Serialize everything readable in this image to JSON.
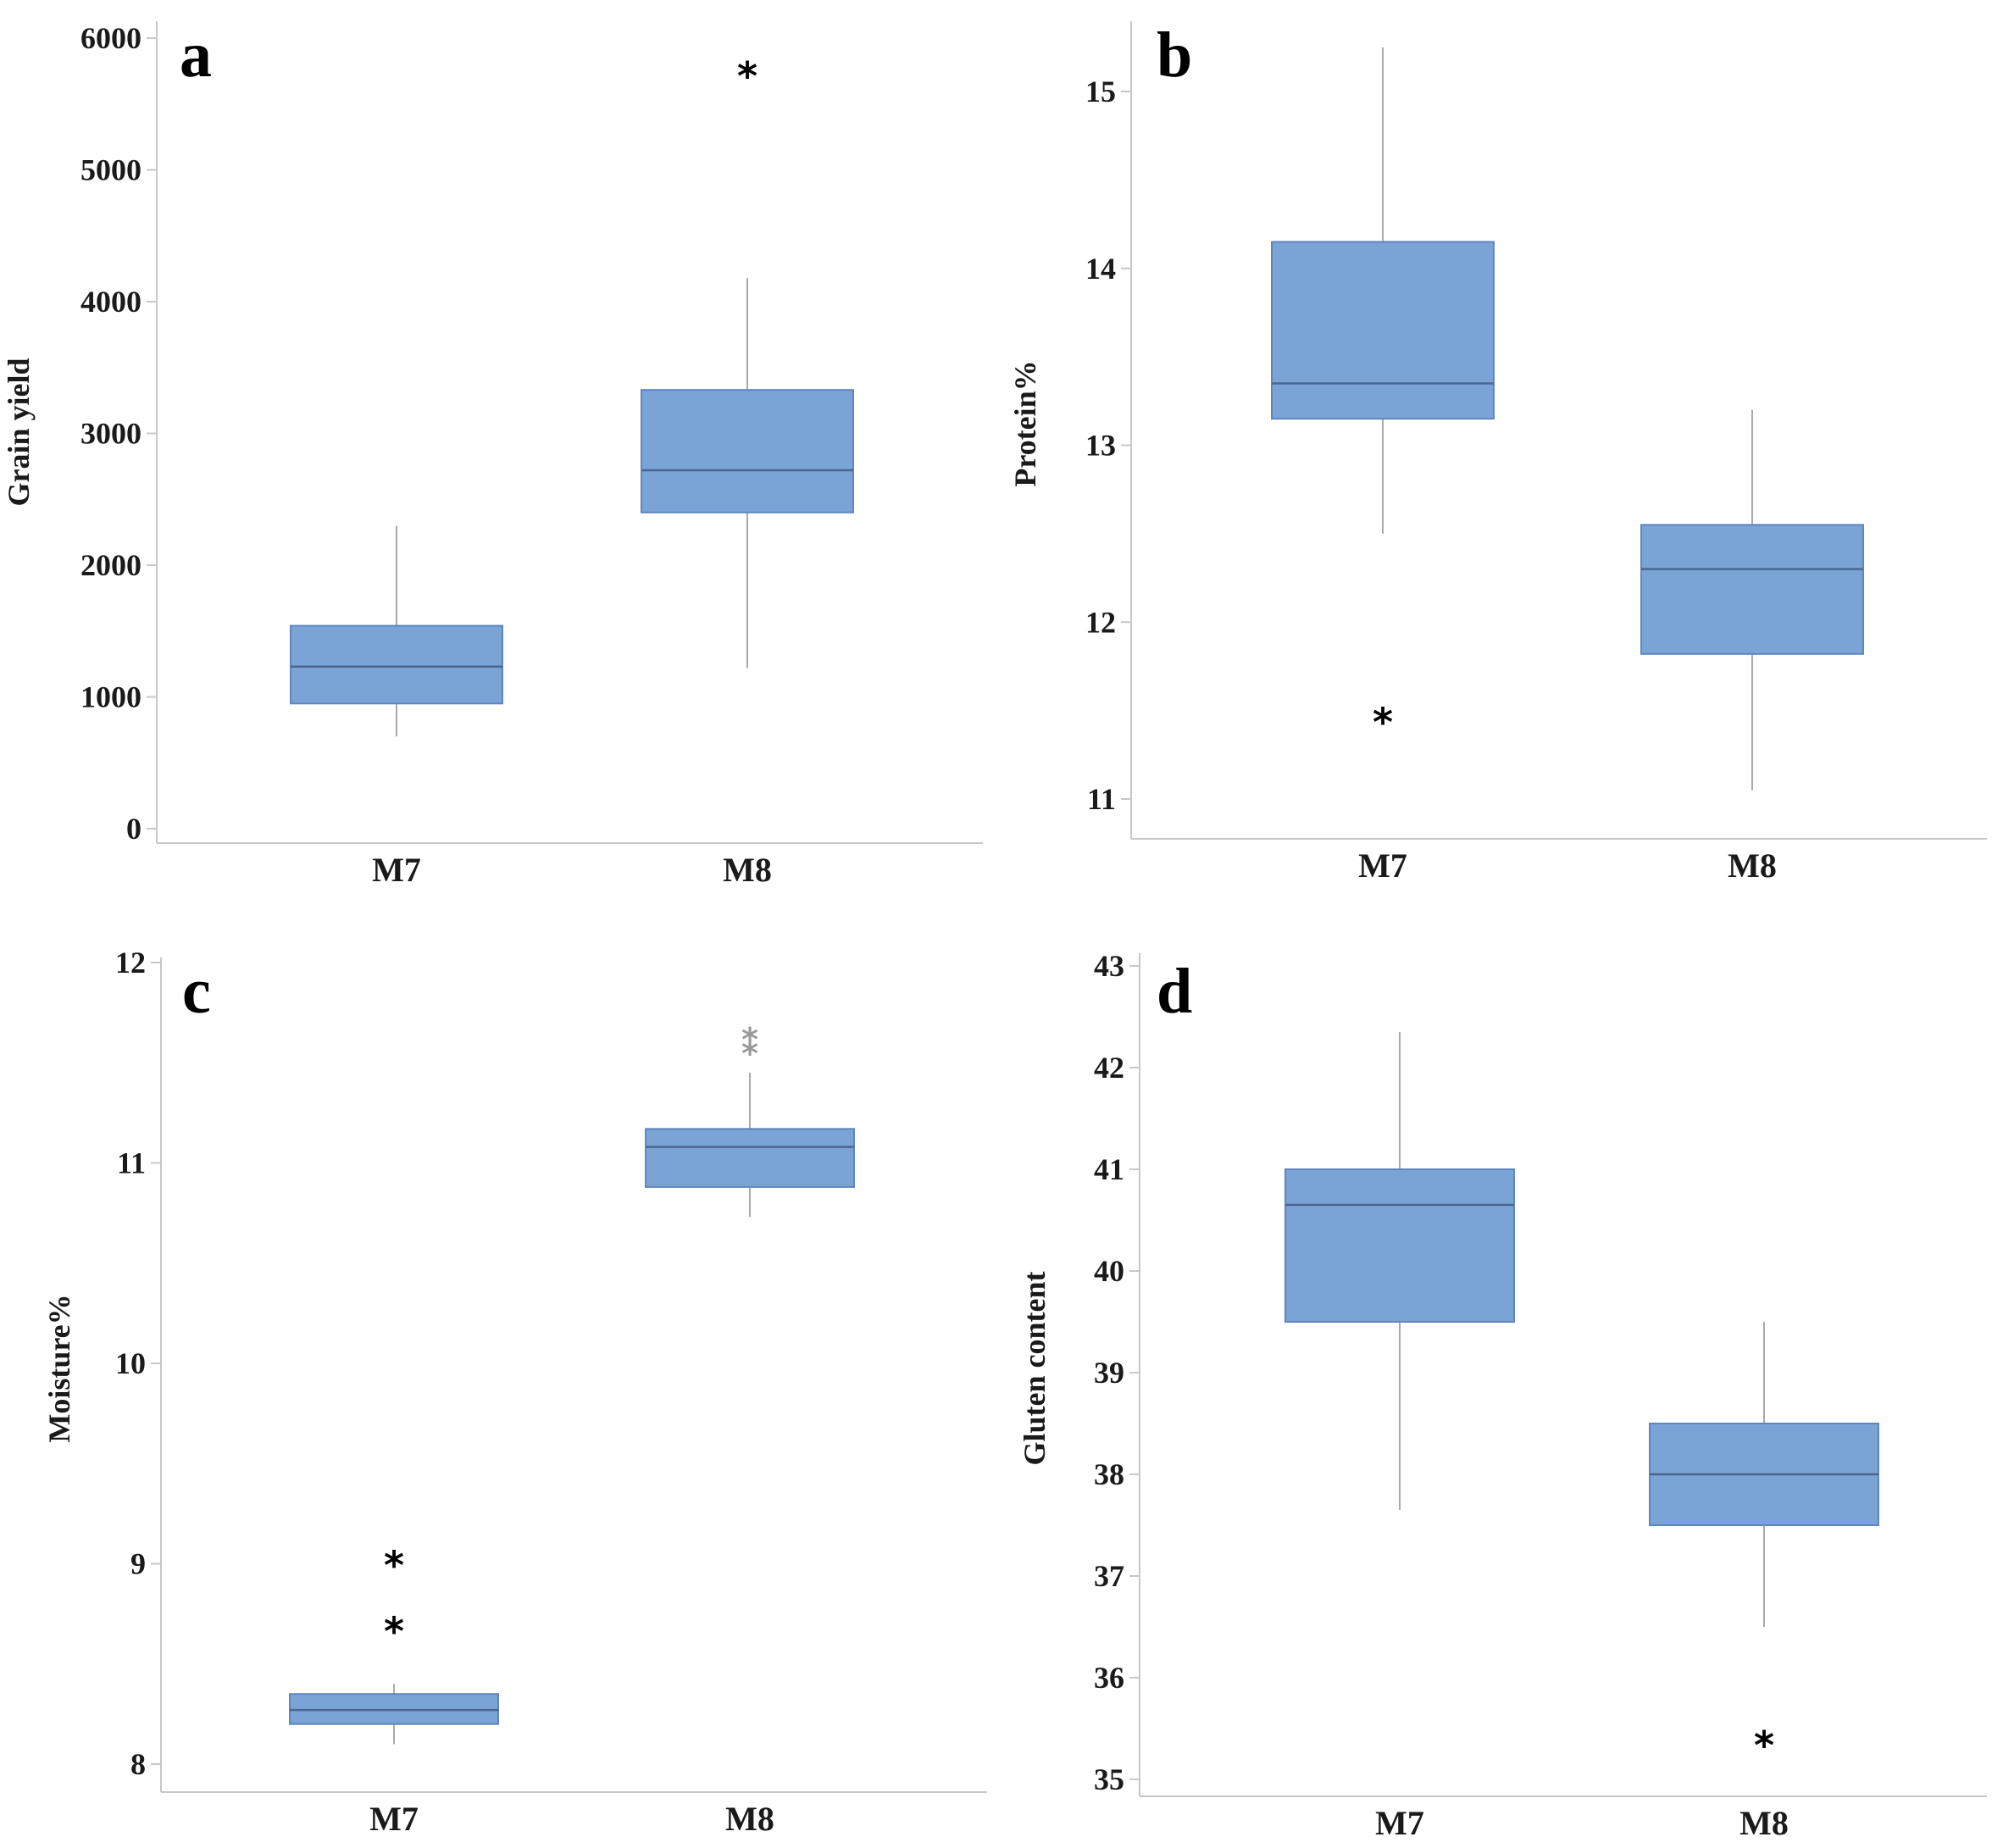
{
  "colors": {
    "box_fill": "#7aa3d6",
    "box_stroke": "#5f87bd",
    "median": "#4a6690",
    "whisker": "#a9a9a9",
    "axis": "#c8c8c8"
  },
  "chart_data": [
    {
      "type": "box",
      "panel": "a",
      "title": "",
      "xlabel": "",
      "ylabel": "Grain yield",
      "ylim": [
        0,
        6000
      ],
      "yticks": [
        0,
        1000,
        2000,
        3000,
        4000,
        5000,
        6000
      ],
      "ytick_labels": [
        "0",
        "1000",
        "2000",
        "3000",
        "4000",
        "5000",
        "6000"
      ],
      "categories": [
        "M7",
        "M8"
      ],
      "boxes": [
        {
          "category": "M7",
          "whisker_low": 700,
          "q1": 950,
          "median": 1230,
          "q3": 1540,
          "whisker_high": 2300,
          "outliers": [],
          "faint_outliers": []
        },
        {
          "category": "M8",
          "whisker_low": 1220,
          "q1": 2400,
          "median": 2720,
          "q3": 3330,
          "whisker_high": 4180,
          "outliers": [
            5800
          ],
          "faint_outliers": []
        }
      ]
    },
    {
      "type": "box",
      "panel": "b",
      "title": "",
      "xlabel": "",
      "ylabel": "Protein%",
      "ylim": [
        10.8,
        15.4
      ],
      "yticks": [
        11,
        12,
        13,
        14,
        15
      ],
      "ytick_labels": [
        "11",
        "12",
        "13",
        "14",
        "15"
      ],
      "categories": [
        "M7",
        "M8"
      ],
      "boxes": [
        {
          "category": "M7",
          "whisker_low": 12.5,
          "q1": 13.15,
          "median": 13.35,
          "q3": 14.15,
          "whisker_high": 15.25,
          "outliers": [
            11.5
          ],
          "faint_outliers": []
        },
        {
          "category": "M8",
          "whisker_low": 11.05,
          "q1": 11.82,
          "median": 12.3,
          "q3": 12.55,
          "whisker_high": 13.2,
          "outliers": [],
          "faint_outliers": []
        }
      ]
    },
    {
      "type": "box",
      "panel": "c",
      "title": "",
      "xlabel": "",
      "ylabel": "Moisture%",
      "ylim": [
        7.95,
        12.0
      ],
      "yticks": [
        8,
        9,
        10,
        11,
        12
      ],
      "ytick_labels": [
        "8",
        "9",
        "10",
        "11",
        "12"
      ],
      "categories": [
        "M7",
        "M8"
      ],
      "boxes": [
        {
          "category": "M7",
          "whisker_low": 8.1,
          "q1": 8.2,
          "median": 8.27,
          "q3": 8.35,
          "whisker_high": 8.4,
          "outliers": [
            9.05,
            8.72
          ],
          "faint_outliers": []
        },
        {
          "category": "M8",
          "whisker_low": 10.73,
          "q1": 10.88,
          "median": 11.08,
          "q3": 11.17,
          "whisker_high": 11.45,
          "outliers": [],
          "faint_outliers": [
            11.67,
            11.6
          ]
        }
      ]
    },
    {
      "type": "box",
      "panel": "d",
      "title": "",
      "xlabel": "",
      "ylabel": "Gluten content",
      "ylim": [
        34.9,
        43.0
      ],
      "yticks": [
        35,
        36,
        37,
        38,
        39,
        40,
        41,
        42,
        43
      ],
      "ytick_labels": [
        "35",
        "36",
        "37",
        "38",
        "39",
        "40",
        "41",
        "42",
        "43"
      ],
      "categories": [
        "M7",
        "M8"
      ],
      "boxes": [
        {
          "category": "M7",
          "whisker_low": 37.65,
          "q1": 39.5,
          "median": 40.65,
          "q3": 41.0,
          "whisker_high": 42.35,
          "outliers": [],
          "faint_outliers": []
        },
        {
          "category": "M8",
          "whisker_low": 36.5,
          "q1": 37.5,
          "median": 38.0,
          "q3": 38.5,
          "whisker_high": 39.5,
          "outliers": [
            35.45
          ],
          "faint_outliers": []
        }
      ]
    }
  ]
}
